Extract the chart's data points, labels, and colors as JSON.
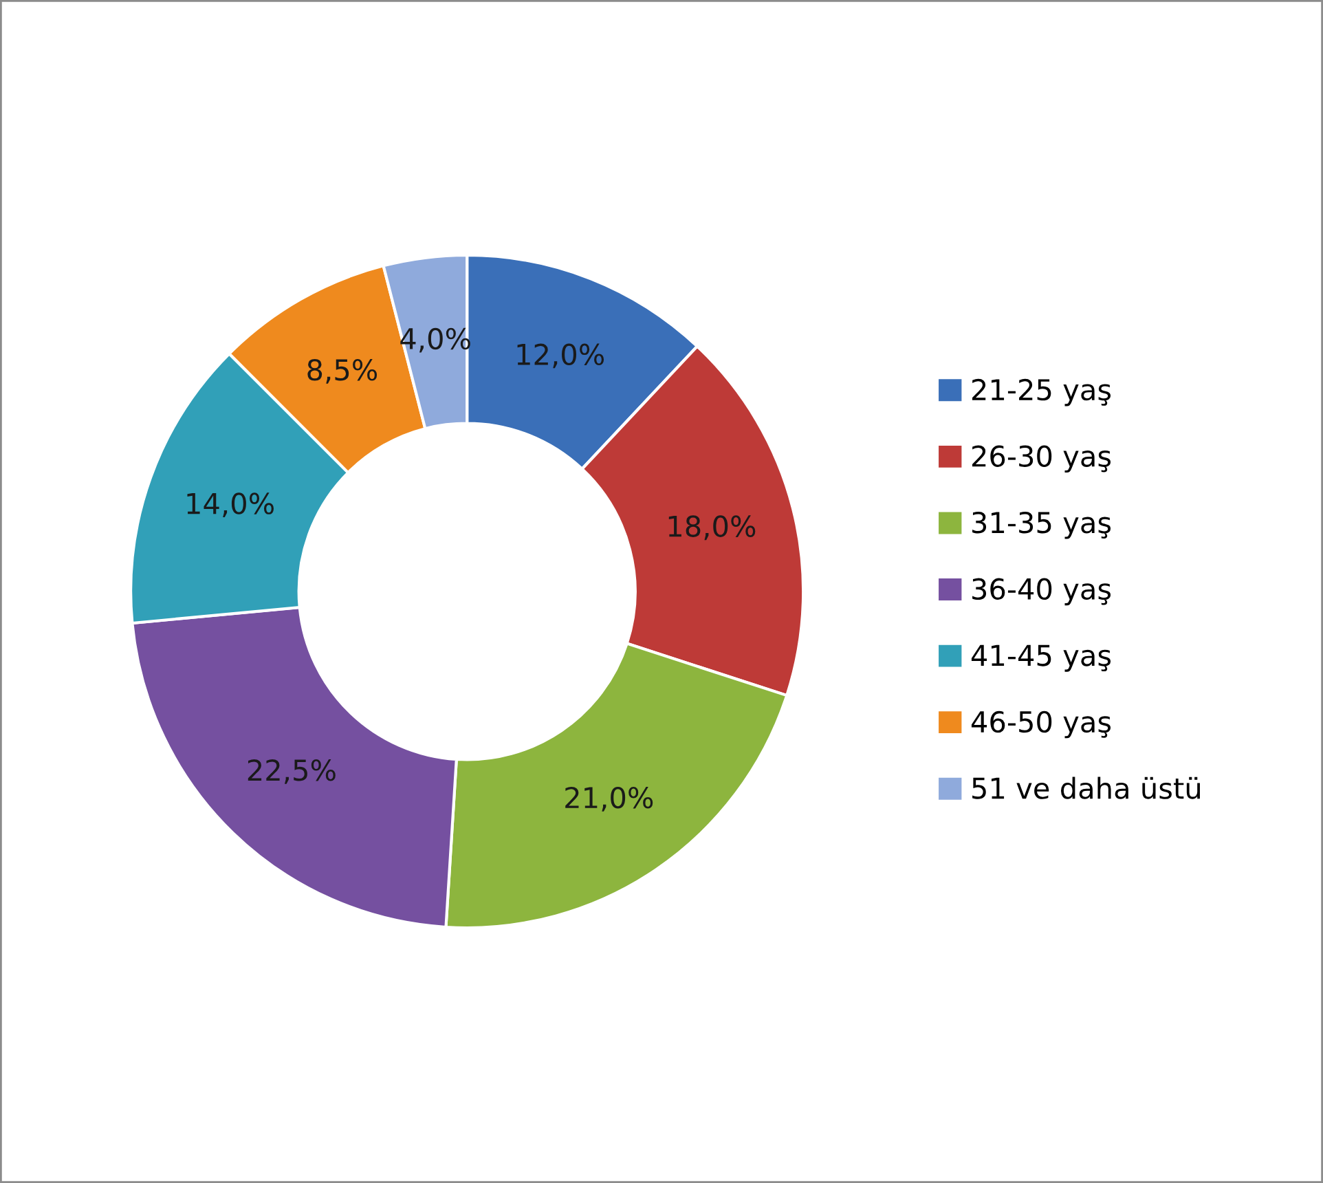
{
  "chart_data": {
    "type": "donut",
    "categories": [
      "21-25 yaş",
      "26-30 yaş",
      "31-35 yaş",
      "36-40 yaş",
      "41-45 yaş",
      "46-50 yaş",
      "51 ve daha üstü"
    ],
    "values": [
      12.0,
      18.0,
      21.0,
      22.5,
      14.0,
      8.5,
      4.0
    ],
    "value_labels": [
      "12,0%",
      "18,0%",
      "21,0%",
      "22,5%",
      "14,0%",
      "8,5%",
      "4,0%"
    ],
    "colors": [
      "#3a6fb8",
      "#be3a37",
      "#8db53e",
      "#7550a0",
      "#31a0b8",
      "#ef8a1e",
      "#8faadc"
    ],
    "legend": "right"
  }
}
